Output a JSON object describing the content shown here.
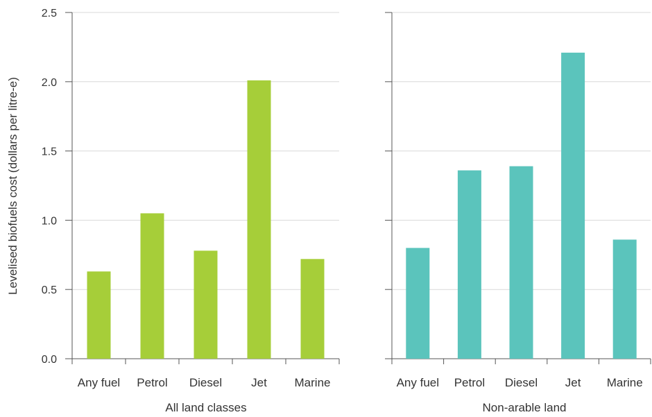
{
  "chart_data": {
    "type": "bar",
    "ylabel": "Levelised biofuels cost (dollars per litre-e)",
    "ylim": [
      0,
      2.5
    ],
    "yticks": [
      "0.0",
      "0.5",
      "1.0",
      "1.5",
      "2.0",
      "2.5"
    ],
    "grid": true,
    "categories": [
      "Any fuel",
      "Petrol",
      "Diesel",
      "Jet",
      "Marine"
    ],
    "panels": [
      {
        "name": "All land classes",
        "color": "#a6ce39",
        "values": [
          0.63,
          1.05,
          0.78,
          2.01,
          0.72
        ]
      },
      {
        "name": "Non-arable land",
        "color": "#5bc4bc",
        "values": [
          0.8,
          1.36,
          1.39,
          2.21,
          0.86
        ]
      }
    ]
  }
}
